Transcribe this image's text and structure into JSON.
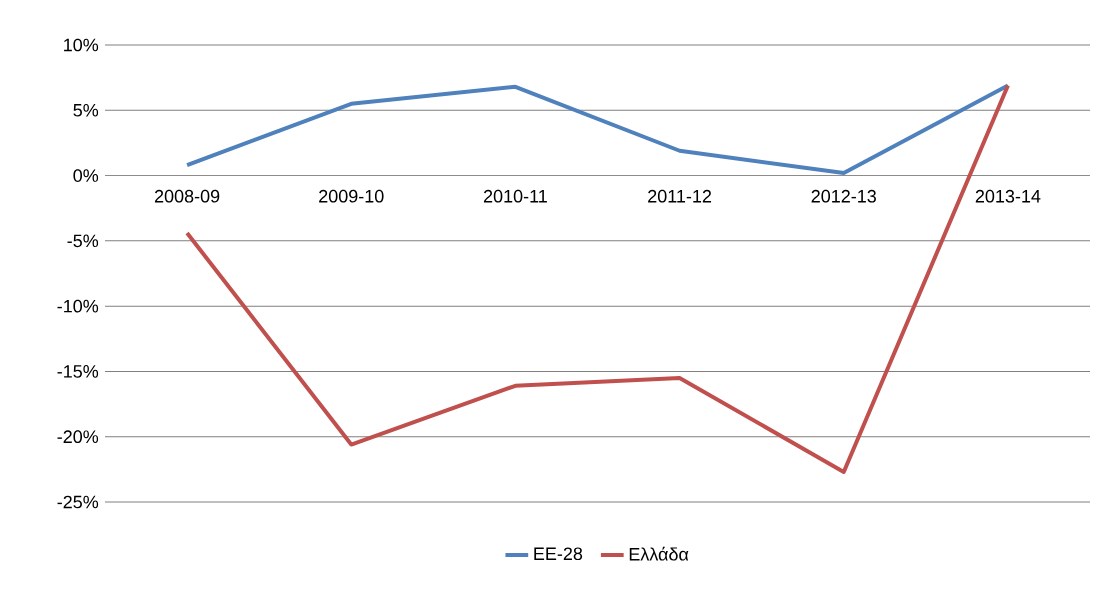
{
  "chart_data": {
    "type": "line",
    "categories": [
      "2008-09",
      "2009-10",
      "2010-11",
      "2011-12",
      "2012-13",
      "2013-14"
    ],
    "series": [
      {
        "name": "ΕΕ-28",
        "color": "#4f81bd",
        "values": [
          0.8,
          5.5,
          6.8,
          1.9,
          0.2,
          6.9
        ]
      },
      {
        "name": "Ελλάδα",
        "color": "#c0504d",
        "values": [
          -4.4,
          -20.6,
          -16.1,
          -15.5,
          -22.7,
          6.9
        ]
      }
    ],
    "ylim": [
      -25,
      10
    ],
    "yticks": [
      {
        "value": -25,
        "label": "-25%"
      },
      {
        "value": -20,
        "label": "-20%"
      },
      {
        "value": -15,
        "label": "-15%"
      },
      {
        "value": -10,
        "label": "-10%"
      },
      {
        "value": -5,
        "label": "-5%"
      },
      {
        "value": 0,
        "label": "0%"
      },
      {
        "value": 5,
        "label": "5%"
      },
      {
        "value": 10,
        "label": "10%"
      }
    ],
    "grid": "y",
    "legend": "bottom",
    "marker": "none",
    "line_style": "solid"
  }
}
